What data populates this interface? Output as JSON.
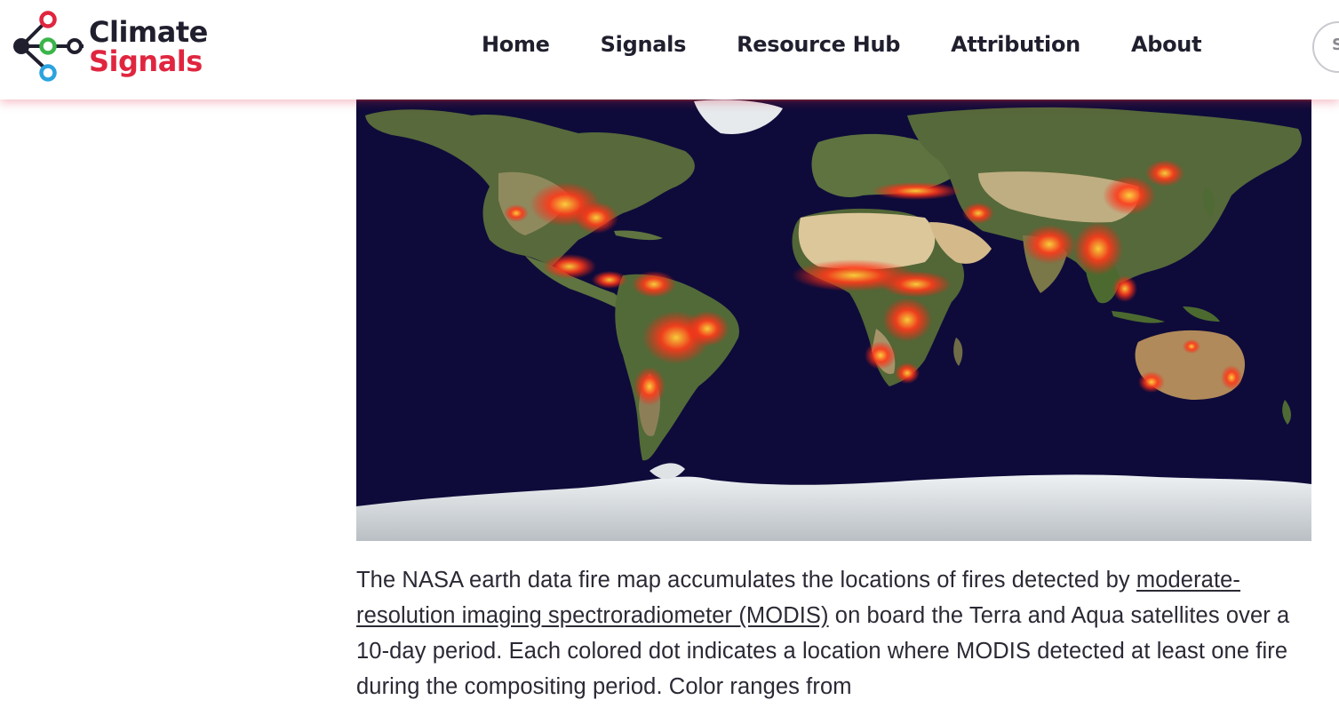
{
  "brand": {
    "name_line1": "Climate",
    "name_line2": "Signals",
    "colors": {
      "dark": "#1f1f2e",
      "red": "#e0263f",
      "green": "#3bb54a",
      "blue": "#2ba3e0"
    }
  },
  "nav": {
    "items": [
      {
        "label": "Home"
      },
      {
        "label": "Signals"
      },
      {
        "label": "Resource Hub"
      },
      {
        "label": "Attribution"
      },
      {
        "label": "About"
      }
    ],
    "search_glyph": "S"
  },
  "map": {
    "colors": {
      "ocean": "#0e0b3a",
      "land": "#55683a",
      "desert": "#d8c49a",
      "ice": "#dfe3e6",
      "fire": "#ff2a1a"
    }
  },
  "article": {
    "p1_before_link": "The NASA earth data fire map accumulates the locations of fires detected by ",
    "p1_link": "moderate-resolution imaging spectroradiometer (MODIS)",
    "p1_after_link": " on board the Terra and Aqua satellites over a 10-day period. Each colored dot indicates a location where MODIS detected at least one fire during the compositing period. Color ranges from"
  }
}
